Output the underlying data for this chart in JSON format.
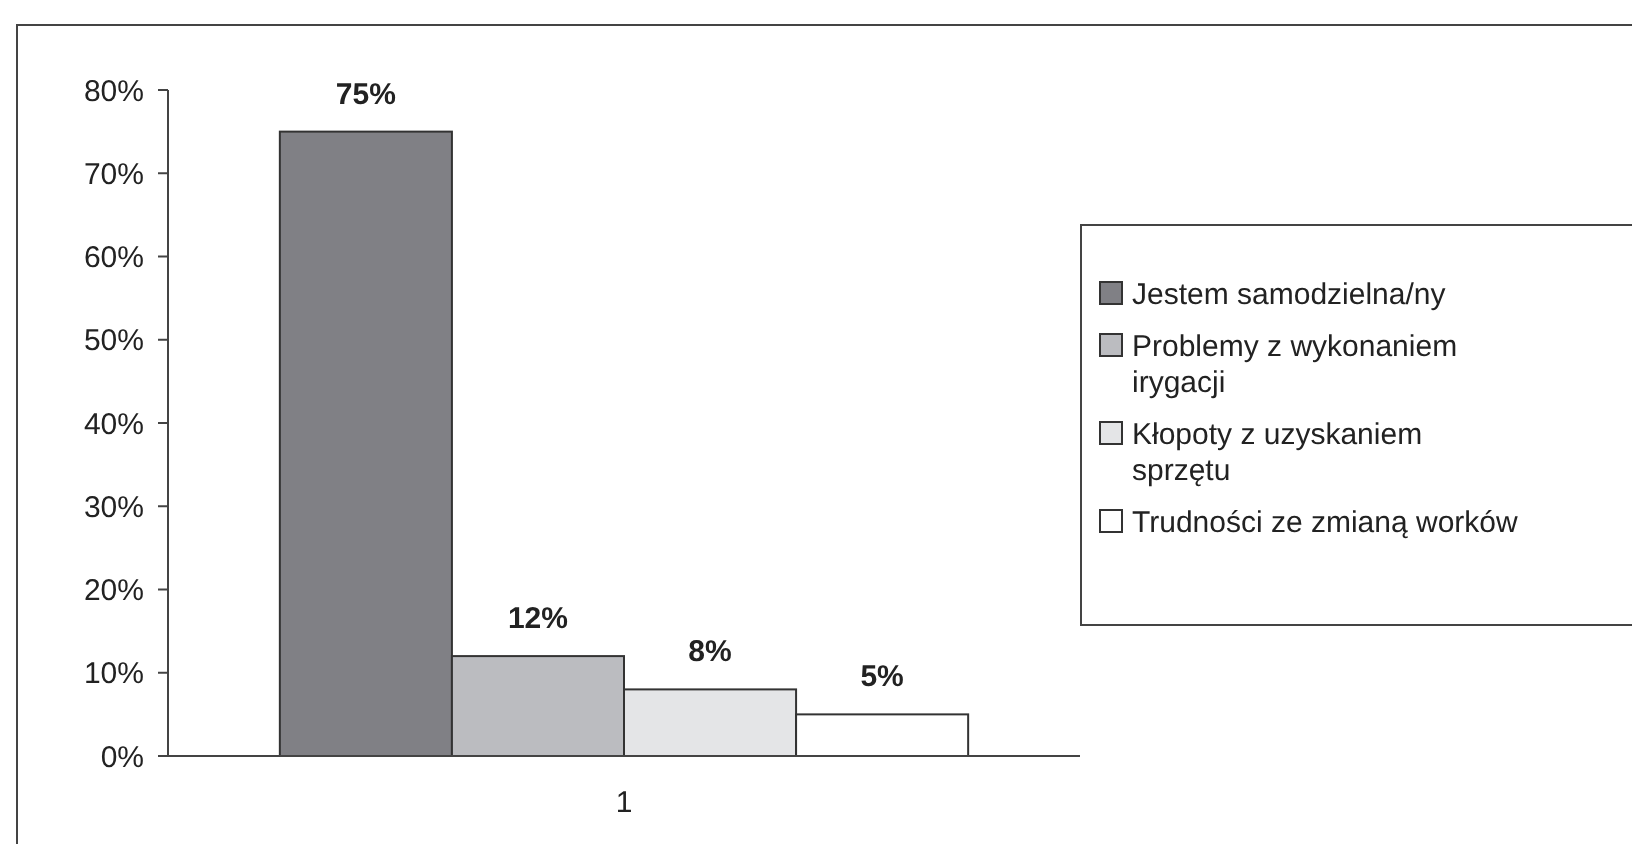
{
  "chart_data": {
    "type": "bar",
    "categories": [
      "1"
    ],
    "series": [
      {
        "name": "Jestem samodzielna/ny",
        "color": "#808085",
        "values": [
          75
        ]
      },
      {
        "name": "Problemy z wykonaniem irygacji",
        "color": "#bbbcc0",
        "values": [
          12
        ]
      },
      {
        "name": "Kłopoty z uzyskaniem sprzętu",
        "color": "#e4e5e7",
        "values": [
          8
        ]
      },
      {
        "name": "Trudności ze zmianą worków",
        "color": "#ffffff",
        "values": [
          5
        ]
      }
    ],
    "ylim": [
      0,
      80
    ],
    "yticks": [
      {
        "value": 0,
        "label": "0%"
      },
      {
        "value": 10,
        "label": "10%"
      },
      {
        "value": 20,
        "label": "20%"
      },
      {
        "value": 30,
        "label": "30%"
      },
      {
        "value": 40,
        "label": "40%"
      },
      {
        "value": 50,
        "label": "50%"
      },
      {
        "value": 60,
        "label": "60%"
      },
      {
        "value": 70,
        "label": "70%"
      },
      {
        "value": 80,
        "label": "80%"
      }
    ],
    "value_labels": [
      "75%",
      "12%",
      "8%",
      "5%"
    ],
    "legend": "right",
    "grid": false
  }
}
